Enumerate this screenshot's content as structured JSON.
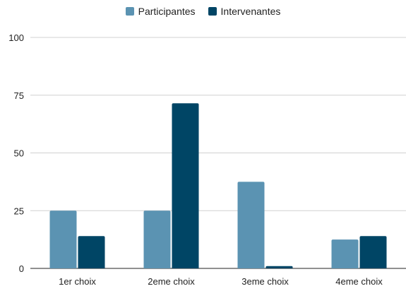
{
  "colors": {
    "participantes": "#5b93b2",
    "intervenantes": "#004565",
    "grid": "#d0d0d0",
    "axis": "#222222",
    "text": "#222222"
  },
  "chart_data": {
    "type": "bar",
    "title": "",
    "xlabel": "",
    "ylabel": "",
    "categories": [
      "1er choix",
      "2eme choix",
      "3eme choix",
      "4eme choix"
    ],
    "series": [
      {
        "name": "Participantes",
        "values": [
          25,
          25,
          37.5,
          12.5
        ]
      },
      {
        "name": "Intervenantes",
        "values": [
          14,
          71.5,
          1,
          14
        ]
      }
    ],
    "ylim": [
      0,
      100
    ],
    "yticks": [
      "0",
      "25",
      "50",
      "75",
      "100"
    ],
    "grid": true,
    "legend_position": "top"
  }
}
